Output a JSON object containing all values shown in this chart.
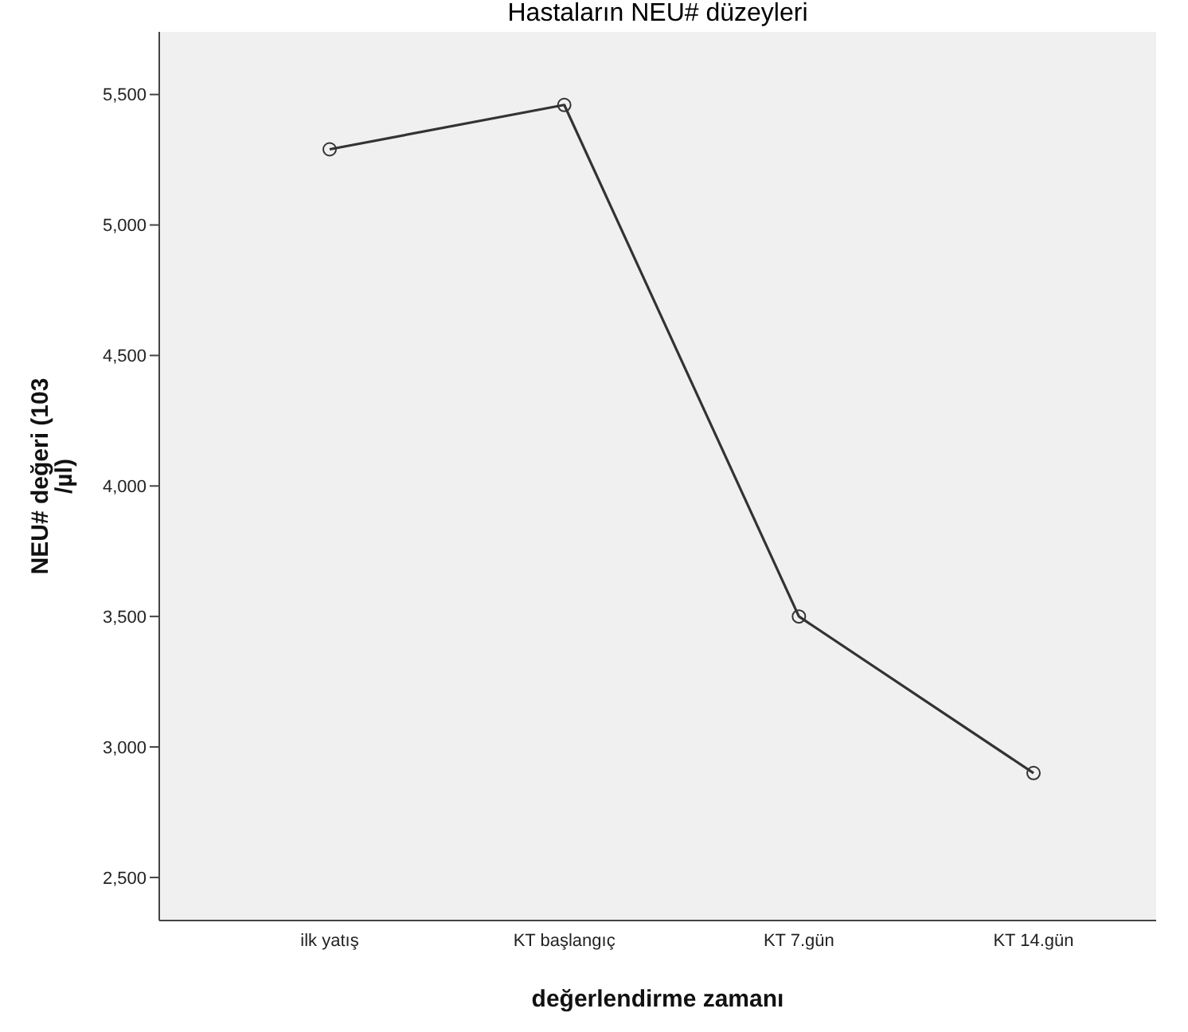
{
  "chart_data": {
    "type": "line",
    "title": "Hastaların NEU# düzeyleri",
    "xlabel": "değerlendirme zamanı",
    "ylabel": "NEU# değeri (103 /µl)",
    "categories": [
      "ilk yatış",
      "KT başlangıç",
      "KT 7.gün",
      "KT 14.gün"
    ],
    "values": [
      5290,
      5460,
      3500,
      2900
    ],
    "color": "#333333",
    "ylim": [
      2335,
      5740
    ],
    "yticks": [
      {
        "value": 2500,
        "label": "2,500"
      },
      {
        "value": 3000,
        "label": "3,000"
      },
      {
        "value": 3500,
        "label": "3,500"
      },
      {
        "value": 4000,
        "label": "4,000"
      },
      {
        "value": 4500,
        "label": "4,500"
      },
      {
        "value": 5000,
        "label": "5,000"
      },
      {
        "value": 5500,
        "label": "5,500"
      }
    ],
    "marker": "circle",
    "line_style": "solid"
  }
}
